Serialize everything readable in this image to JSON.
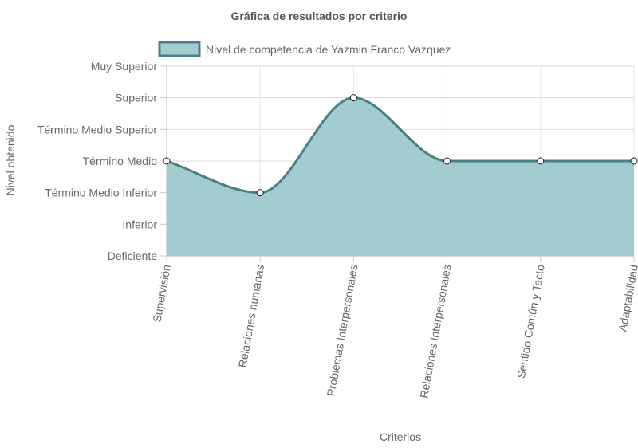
{
  "chart_data": {
    "type": "area",
    "title": "Gráfica de resultados por criterio",
    "xlabel": "Criterios",
    "ylabel": "Nivel obtenido",
    "categories": [
      "Supervisión",
      "Relaciones humanas",
      "Problemas Interpersonales",
      "Relaciones Interpersonales",
      "Sentido Común y Tacto",
      "Adaptabilidad"
    ],
    "y_levels": [
      "Deficiente",
      "Inferior",
      "Término Medio Inferior",
      "Término Medio",
      "Término Medio Superior",
      "Superior",
      "Muy Superior"
    ],
    "ylim": [
      0,
      6
    ],
    "grid": true,
    "legend_position": "top",
    "series": [
      {
        "name": "Nivel de competencia de Yazmin Franco Vazquez",
        "values": [
          3,
          2,
          5,
          3,
          3,
          3
        ],
        "fill_color": "#a2cccf",
        "line_color": "#4b7f84",
        "smooth": true
      }
    ]
  }
}
